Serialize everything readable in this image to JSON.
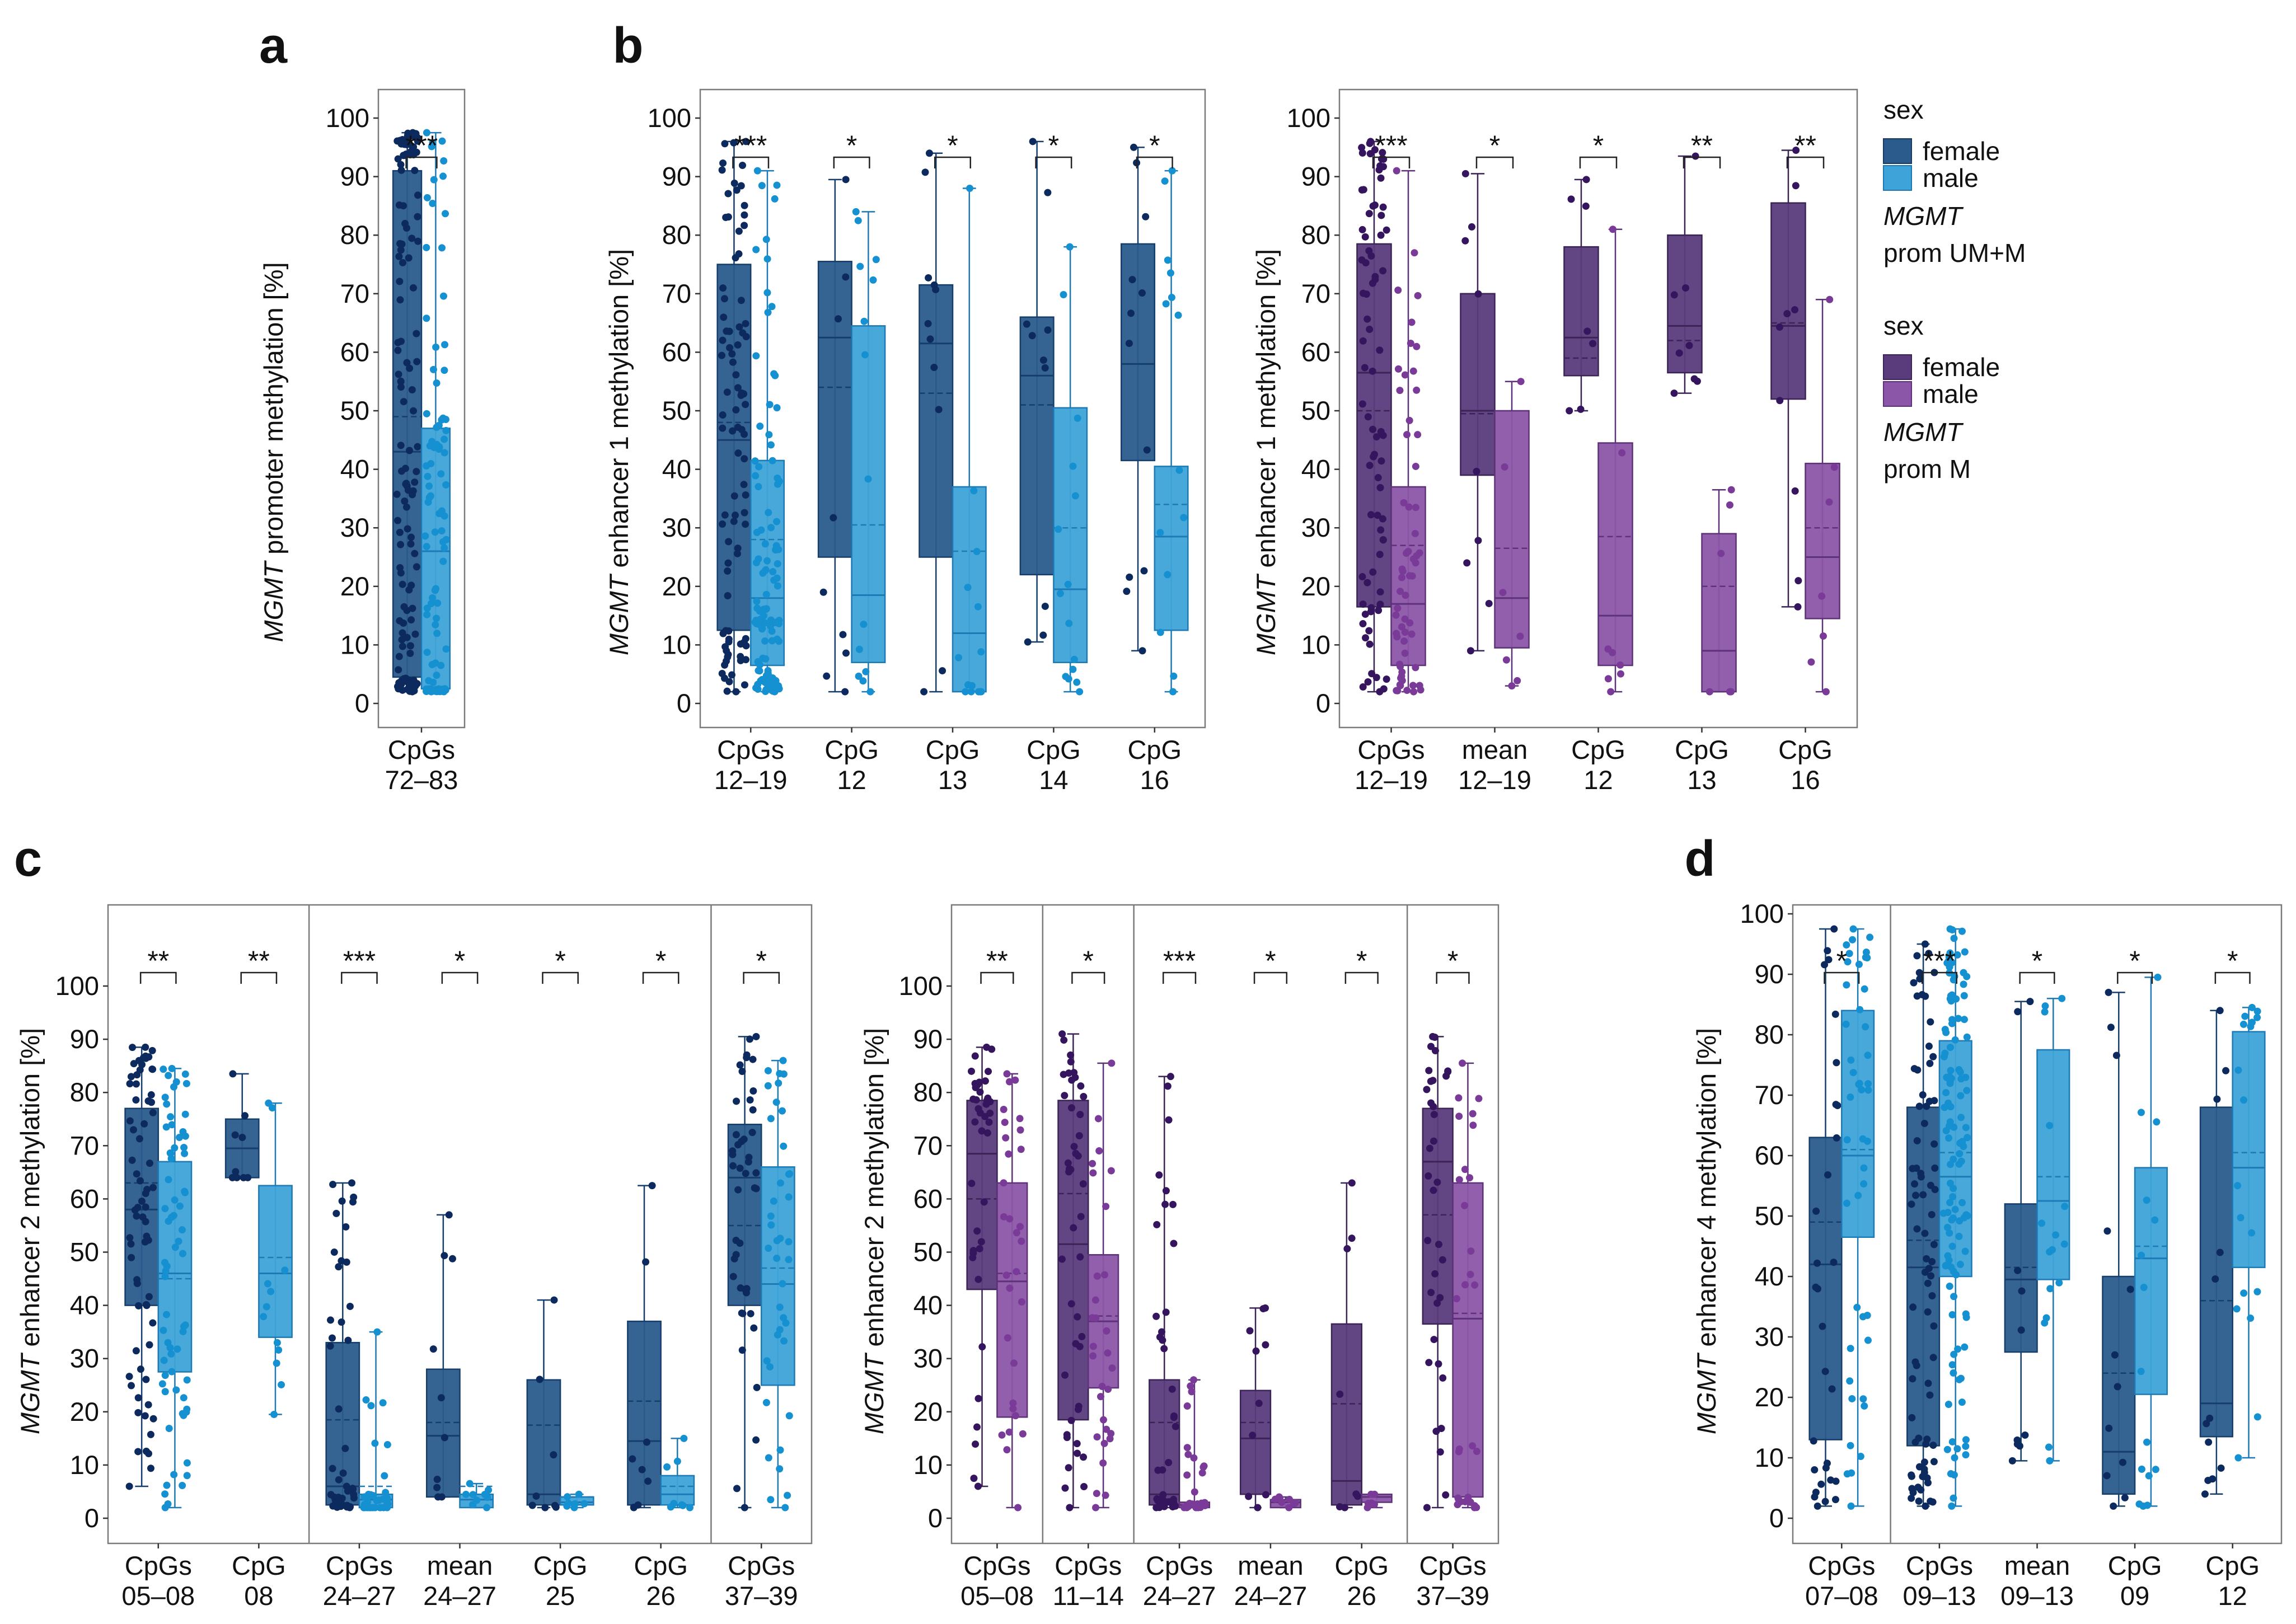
{
  "panel_labels": {
    "a": "a",
    "b": "b",
    "c": "c",
    "d": "d"
  },
  "axis_labels": {
    "gene": "MGMT",
    "a": " promoter methylation [%]",
    "b": " enhancer 1 methylation [%]",
    "c": " enhancer 2 methylation [%]",
    "d": " enhancer 4 methylation [%]"
  },
  "y_ticks": [
    "0",
    "10",
    "20",
    "30",
    "40",
    "50",
    "60",
    "70",
    "80",
    "90",
    "100"
  ],
  "legend": {
    "groups": [
      {
        "title": "sex",
        "female": "female",
        "male": "male",
        "gene": "MGMT",
        "desc": "prom UM+M",
        "female_color": "#2a5b8c",
        "male_color": "#3ea3d8"
      },
      {
        "title": "sex",
        "female": "female",
        "male": "male",
        "gene": "MGMT",
        "desc": "prom M",
        "female_color": "#5a3c7c",
        "male_color": "#8b56a8"
      }
    ]
  },
  "colors": {
    "blue_female_fill": "#2a5b8c",
    "blue_male_fill": "#3ea3d8",
    "blue_female_pt": "#0d2a5e",
    "blue_male_pt": "#1590d0",
    "purple_female_fill": "#5a3c7c",
    "purple_male_fill": "#8b56a8",
    "purple_female_pt": "#35155e",
    "purple_male_pt": "#7a3a98"
  },
  "chart_data": [
    {
      "id": "a",
      "type": "box",
      "title": "",
      "ylabel": "MGMT promoter methylation [%]",
      "ylim": [
        0,
        100
      ],
      "palette": "blue",
      "groups": [
        {
          "xlabel": [
            "CpGs",
            "72–83"
          ],
          "sig": "***",
          "female": {
            "min": 2,
            "q1": 4.5,
            "median": 43,
            "mean": 49,
            "q3": 91,
            "max": 97.5,
            "n": 130
          },
          "male": {
            "min": 2,
            "q1": 2.5,
            "median": 26,
            "mean": 26,
            "q3": 47,
            "max": 97.5,
            "n": 110
          }
        }
      ]
    },
    {
      "id": "b1",
      "type": "box",
      "title": "",
      "ylabel": "MGMT enhancer 1 methylation [%]",
      "ylim": [
        0,
        100
      ],
      "palette": "blue",
      "groups": [
        {
          "xlabel": [
            "CpGs",
            "12–19"
          ],
          "sig": "***",
          "female": {
            "min": 2,
            "q1": 12.5,
            "median": 45,
            "mean": 48,
            "q3": 75,
            "max": 96,
            "n": 90
          },
          "male": {
            "min": 2,
            "q1": 6.5,
            "median": 18,
            "mean": 28,
            "q3": 41.5,
            "max": 91,
            "n": 110
          }
        },
        {
          "xlabel": [
            "CpG",
            "12"
          ],
          "sig": "*",
          "female": {
            "min": 2,
            "q1": 25,
            "median": 62.5,
            "mean": 54,
            "q3": 75.5,
            "max": 89.5,
            "n": 9
          },
          "male": {
            "min": 2,
            "q1": 7,
            "median": 18.5,
            "mean": 30.5,
            "q3": 64.5,
            "max": 84,
            "n": 14
          }
        },
        {
          "xlabel": [
            "CpG",
            "13"
          ],
          "sig": "*",
          "female": {
            "min": 2,
            "q1": 25,
            "median": 61.5,
            "mean": 53,
            "q3": 71.5,
            "max": 94,
            "n": 11
          },
          "male": {
            "min": 2,
            "q1": 2,
            "median": 12,
            "mean": 26,
            "q3": 37,
            "max": 88,
            "n": 14
          }
        },
        {
          "xlabel": [
            "CpG",
            "14"
          ],
          "sig": "*",
          "female": {
            "min": 10.5,
            "q1": 22,
            "median": 56,
            "mean": 51,
            "q3": 66,
            "max": 96,
            "n": 10
          },
          "male": {
            "min": 2,
            "q1": 7,
            "median": 19.5,
            "mean": 30,
            "q3": 50.5,
            "max": 78,
            "n": 15
          }
        },
        {
          "xlabel": [
            "CpG",
            "16"
          ],
          "sig": "*",
          "female": {
            "min": 9,
            "q1": 41.5,
            "median": 58,
            "mean": 58,
            "q3": 78.5,
            "max": 95,
            "n": 12
          },
          "male": {
            "min": 2,
            "q1": 12.5,
            "median": 28.5,
            "mean": 34,
            "q3": 40.5,
            "max": 91,
            "n": 14
          }
        }
      ]
    },
    {
      "id": "b2",
      "type": "box",
      "title": "",
      "ylabel": "MGMT enhancer 1 methylation [%]",
      "ylim": [
        0,
        100
      ],
      "palette": "purple",
      "groups": [
        {
          "xlabel": [
            "CpGs",
            "12–19"
          ],
          "sig": "***",
          "female": {
            "min": 2,
            "q1": 16.5,
            "median": 56.5,
            "mean": 50,
            "q3": 78.5,
            "max": 96,
            "n": 80
          },
          "male": {
            "min": 2,
            "q1": 6.5,
            "median": 17,
            "mean": 27,
            "q3": 37,
            "max": 91,
            "n": 60
          }
        },
        {
          "xlabel": [
            "mean",
            "12–19"
          ],
          "sig": "*",
          "female": {
            "min": 9,
            "q1": 39,
            "median": 50,
            "mean": 49.5,
            "q3": 70,
            "max": 90.5,
            "n": 9
          },
          "male": {
            "min": 3,
            "q1": 9.5,
            "median": 18,
            "mean": 26.5,
            "q3": 50,
            "max": 55,
            "n": 7
          }
        },
        {
          "xlabel": [
            "CpG",
            "12"
          ],
          "sig": "*",
          "female": {
            "min": 50,
            "q1": 56,
            "median": 62.5,
            "mean": 59,
            "q3": 78,
            "max": 89.5,
            "n": 7
          },
          "male": {
            "min": 2,
            "q1": 6.5,
            "median": 15,
            "mean": 28.5,
            "q3": 44.5,
            "max": 81,
            "n": 8
          }
        },
        {
          "xlabel": [
            "CpG",
            "13"
          ],
          "sig": "**",
          "female": {
            "min": 53,
            "q1": 56.5,
            "median": 64.5,
            "mean": 62,
            "q3": 80,
            "max": 93.5,
            "n": 8
          },
          "male": {
            "min": 2,
            "q1": 2,
            "median": 9,
            "mean": 20,
            "q3": 29,
            "max": 36.5,
            "n": 6
          }
        },
        {
          "xlabel": [
            "CpG",
            "16"
          ],
          "sig": "**",
          "female": {
            "min": 16.5,
            "q1": 52,
            "median": 64.5,
            "mean": 65,
            "q3": 85.5,
            "max": 94.5,
            "n": 9
          },
          "male": {
            "min": 2,
            "q1": 14.5,
            "median": 25,
            "mean": 30,
            "q3": 41,
            "max": 69,
            "n": 7
          }
        }
      ]
    },
    {
      "id": "c1",
      "type": "box",
      "title": "",
      "ylabel": "MGMT enhancer 2 methylation [%]",
      "ylim": [
        0,
        100
      ],
      "palette": "blue",
      "sections": [
        2,
        4,
        1
      ],
      "groups": [
        {
          "xlabel": [
            "CpGs",
            "05–08"
          ],
          "sig": "**",
          "female": {
            "min": 6,
            "q1": 40,
            "median": 58,
            "mean": 63,
            "q3": 77,
            "max": 88.5,
            "n": 70
          },
          "male": {
            "min": 2,
            "q1": 27.5,
            "median": 46,
            "mean": 45,
            "q3": 67,
            "max": 84.5,
            "n": 70
          }
        },
        {
          "xlabel": [
            "CpG",
            "08"
          ],
          "sig": "**",
          "female": {
            "min": 64,
            "q1": 64,
            "median": 69.5,
            "mean": 69.5,
            "q3": 75,
            "max": 83.5,
            "n": 9
          },
          "male": {
            "min": 19.5,
            "q1": 34,
            "median": 46,
            "mean": 49,
            "q3": 62.5,
            "max": 78,
            "n": 12
          }
        },
        {
          "xlabel": [
            "CpGs",
            "24–27"
          ],
          "sig": "***",
          "female": {
            "min": 2,
            "q1": 2.5,
            "median": 6,
            "mean": 18.5,
            "q3": 33,
            "max": 63,
            "n": 45
          },
          "male": {
            "min": 2,
            "q1": 2,
            "median": 3.5,
            "mean": 6,
            "q3": 4.5,
            "max": 35,
            "n": 40
          }
        },
        {
          "xlabel": [
            "mean",
            "24–27"
          ],
          "sig": "*",
          "female": {
            "min": 4,
            "q1": 4,
            "median": 15.5,
            "mean": 18,
            "q3": 28,
            "max": 57,
            "n": 10
          },
          "male": {
            "min": 2,
            "q1": 2,
            "median": 3.5,
            "mean": 6,
            "q3": 4.5,
            "max": 6.5,
            "n": 9
          }
        },
        {
          "xlabel": [
            "CpG",
            "25"
          ],
          "sig": "*",
          "female": {
            "min": 2,
            "q1": 2.5,
            "median": 4.5,
            "mean": 17.5,
            "q3": 26,
            "max": 41,
            "n": 8
          },
          "male": {
            "min": 2,
            "q1": 2.5,
            "median": 3,
            "mean": 4,
            "q3": 4,
            "max": 4.5,
            "n": 8
          }
        },
        {
          "xlabel": [
            "CpG",
            "26"
          ],
          "sig": "*",
          "female": {
            "min": 2,
            "q1": 2.5,
            "median": 14.5,
            "mean": 22,
            "q3": 37,
            "max": 62.5,
            "n": 9
          },
          "male": {
            "min": 2,
            "q1": 2.5,
            "median": 4.5,
            "mean": 6,
            "q3": 8,
            "max": 15,
            "n": 8
          }
        },
        {
          "xlabel": [
            "CpGs",
            "37–39"
          ],
          "sig": "*",
          "female": {
            "min": 2,
            "q1": 40,
            "median": 64,
            "mean": 55,
            "q3": 74,
            "max": 90.5,
            "n": 45
          },
          "male": {
            "min": 2,
            "q1": 25,
            "median": 44,
            "mean": 47,
            "q3": 66,
            "max": 86,
            "n": 40
          }
        }
      ]
    },
    {
      "id": "c2",
      "type": "box",
      "title": "",
      "ylabel": "MGMT enhancer 2 methylation [%]",
      "ylim": [
        0,
        100
      ],
      "palette": "purple",
      "sections": [
        1,
        1,
        3,
        1
      ],
      "groups": [
        {
          "xlabel": [
            "CpGs",
            "05–08"
          ],
          "sig": "**",
          "female": {
            "min": 6,
            "q1": 43,
            "median": 68.5,
            "mean": 60,
            "q3": 78.5,
            "max": 88.5,
            "n": 40
          },
          "male": {
            "min": 2,
            "q1": 19,
            "median": 44.5,
            "mean": 46,
            "q3": 63,
            "max": 83.5,
            "n": 30
          }
        },
        {
          "xlabel": [
            "CpGs",
            "11–14"
          ],
          "sig": "*",
          "female": {
            "min": 2,
            "q1": 18.5,
            "median": 51.5,
            "mean": 61,
            "q3": 78.5,
            "max": 91,
            "n": 45
          },
          "male": {
            "min": 2,
            "q1": 24.5,
            "median": 37,
            "mean": 38,
            "q3": 49.5,
            "max": 85.5,
            "n": 30
          }
        },
        {
          "xlabel": [
            "CpGs",
            "24–27"
          ],
          "sig": "***",
          "female": {
            "min": 2,
            "q1": 2.5,
            "median": 4.5,
            "mean": 18,
            "q3": 26,
            "max": 83,
            "n": 40
          },
          "male": {
            "min": 2,
            "q1": 2,
            "median": 2.5,
            "mean": 3,
            "q3": 3,
            "max": 26,
            "n": 30
          }
        },
        {
          "xlabel": [
            "mean",
            "24–27"
          ],
          "sig": "*",
          "female": {
            "min": 2,
            "q1": 4.5,
            "median": 15,
            "mean": 18,
            "q3": 24,
            "max": 39.5,
            "n": 10
          },
          "male": {
            "min": 2,
            "q1": 2,
            "median": 3,
            "mean": 3,
            "q3": 3.5,
            "max": 4,
            "n": 8
          }
        },
        {
          "xlabel": [
            "CpG",
            "26"
          ],
          "sig": "*",
          "female": {
            "min": 2,
            "q1": 2.5,
            "median": 7,
            "mean": 21.5,
            "q3": 36.5,
            "max": 63,
            "n": 8
          },
          "male": {
            "min": 2,
            "q1": 3,
            "median": 4,
            "mean": 4,
            "q3": 4.5,
            "max": 4.5,
            "n": 7
          }
        },
        {
          "xlabel": [
            "CpGs",
            "37–39"
          ],
          "sig": "*",
          "female": {
            "min": 2,
            "q1": 36.5,
            "median": 67,
            "mean": 57,
            "q3": 77,
            "max": 90.5,
            "n": 35
          },
          "male": {
            "min": 2,
            "q1": 4,
            "median": 37.5,
            "mean": 38.5,
            "q3": 63,
            "max": 85.5,
            "n": 30
          }
        }
      ]
    },
    {
      "id": "d",
      "type": "box",
      "title": "",
      "ylabel": "MGMT enhancer 4 methylation [%]",
      "ylim": [
        0,
        100
      ],
      "palette": "blue",
      "sections": [
        1,
        4
      ],
      "groups": [
        {
          "xlabel": [
            "CpGs",
            "07–08"
          ],
          "sig": "*",
          "female": {
            "min": 2,
            "q1": 13,
            "median": 42,
            "mean": 49,
            "q3": 63,
            "max": 97.5,
            "n": 30
          },
          "male": {
            "min": 2,
            "q1": 46.5,
            "median": 60,
            "mean": 61,
            "q3": 84,
            "max": 97.5,
            "n": 45
          }
        },
        {
          "xlabel": [
            "CpGs",
            "09–13"
          ],
          "sig": "***",
          "female": {
            "min": 2,
            "q1": 12,
            "median": 41.5,
            "mean": 46,
            "q3": 68,
            "max": 95,
            "n": 80
          },
          "male": {
            "min": 2,
            "q1": 40,
            "median": 56.5,
            "mean": 60.5,
            "q3": 79,
            "max": 97.5,
            "n": 120
          }
        },
        {
          "xlabel": [
            "mean",
            "09–13"
          ],
          "sig": "*",
          "female": {
            "min": 9.5,
            "q1": 27.5,
            "median": 39.5,
            "mean": 41.5,
            "q3": 52,
            "max": 85.5,
            "n": 10
          },
          "male": {
            "min": 9.5,
            "q1": 39.5,
            "median": 52.5,
            "mean": 56.5,
            "q3": 77.5,
            "max": 86,
            "n": 16
          }
        },
        {
          "xlabel": [
            "CpG",
            "09"
          ],
          "sig": "*",
          "female": {
            "min": 2,
            "q1": 4,
            "median": 11,
            "mean": 24,
            "q3": 40,
            "max": 87,
            "n": 12
          },
          "male": {
            "min": 2,
            "q1": 20.5,
            "median": 43,
            "mean": 45,
            "q3": 58,
            "max": 89.5,
            "n": 15
          }
        },
        {
          "xlabel": [
            "CpG",
            "12"
          ],
          "sig": "*",
          "female": {
            "min": 4,
            "q1": 13.5,
            "median": 19,
            "mean": 36,
            "q3": 68,
            "max": 84,
            "n": 12
          },
          "male": {
            "min": 10,
            "q1": 41.5,
            "median": 58,
            "mean": 60.5,
            "q3": 80.5,
            "max": 84.5,
            "n": 18
          }
        }
      ]
    }
  ]
}
